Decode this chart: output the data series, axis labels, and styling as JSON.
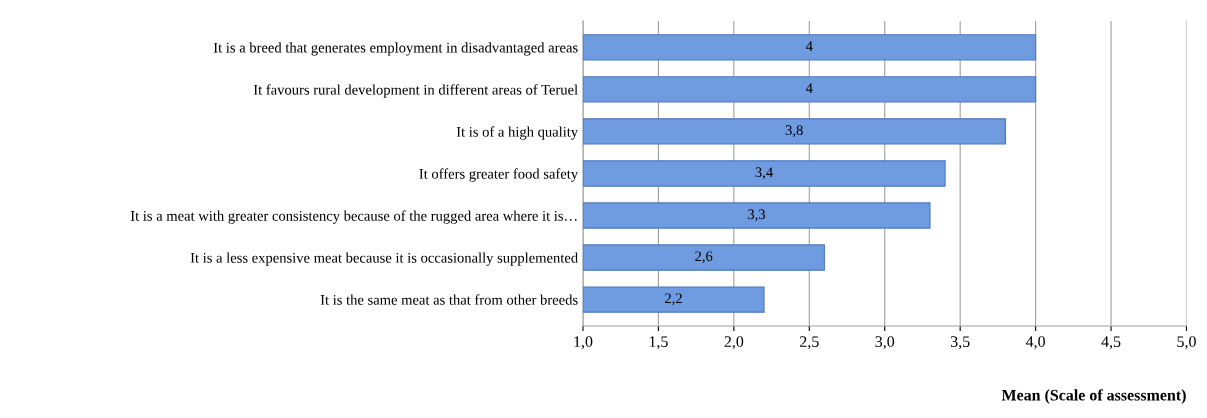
{
  "chart_data": {
    "type": "bar",
    "orientation": "horizontal",
    "xlabel": "Mean (Scale of assessment)",
    "categories": [
      "It is a breed that generates employment in disadvantaged areas",
      "It favours rural development in different areas of Teruel",
      "It is of a high quality",
      "It offers greater food safety",
      "It is a meat with greater consistency because of the rugged area where it is…",
      "It is a less expensive meat because it is occasionally supplemented",
      "It is the same meat as that from other breeds"
    ],
    "values": [
      4,
      4,
      3.8,
      3.4,
      3.3,
      2.6,
      2.2
    ],
    "value_labels": [
      "4",
      "4",
      "3,8",
      "3,4",
      "3,3",
      "2,6",
      "2,2"
    ],
    "color": "#6f9be0",
    "xlim": [
      1,
      5
    ],
    "xticks": [
      {
        "value": 1,
        "label": "1,0"
      },
      {
        "value": 1.5,
        "label": "1,5"
      },
      {
        "value": 2,
        "label": "2,0"
      },
      {
        "value": 2.5,
        "label": "2,5"
      },
      {
        "value": 3,
        "label": "3,0"
      },
      {
        "value": 3.5,
        "label": "3,5"
      },
      {
        "value": 4,
        "label": "4,0"
      },
      {
        "value": 4.5,
        "label": "4,5"
      },
      {
        "value": 5,
        "label": "5,0"
      }
    ],
    "grid": "x",
    "legend": false
  }
}
